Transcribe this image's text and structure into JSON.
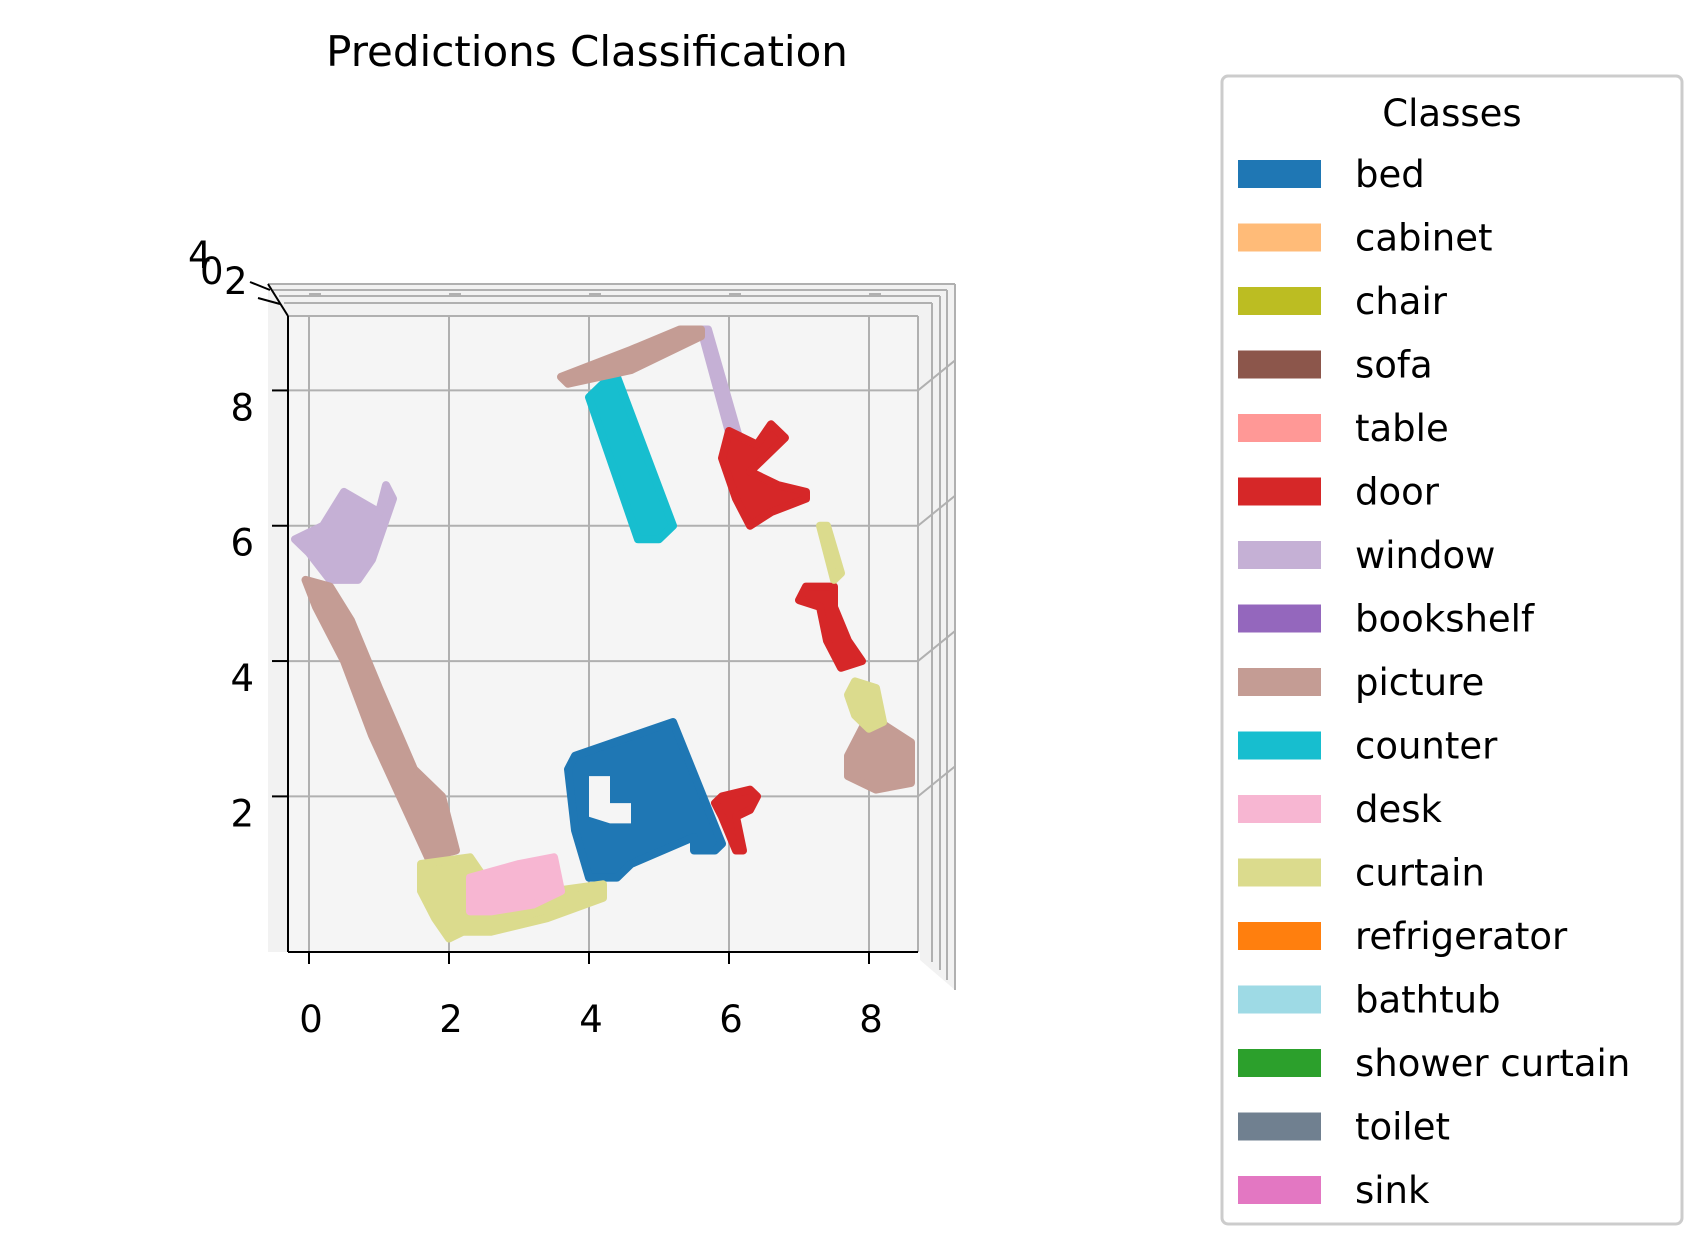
{
  "chart_data": {
    "type": "scatter",
    "title": "Predictions Classification",
    "xlabel": "",
    "ylabel": "",
    "xlim": [
      -0.3,
      8.7
    ],
    "ylim": [
      -0.3,
      9.1
    ],
    "x_ticks": [
      "0",
      "2",
      "4",
      "6",
      "8"
    ],
    "y_ticks": [
      "2",
      "4",
      "6",
      "8"
    ],
    "z_ticks": [
      "4",
      "0",
      "2"
    ],
    "grid": true,
    "legend": {
      "title": "Classes",
      "position": "right",
      "entries": [
        {
          "label": "bed",
          "color": "#1f77b4"
        },
        {
          "label": "cabinet",
          "color": "#ffbb78"
        },
        {
          "label": "chair",
          "color": "#bcbd22"
        },
        {
          "label": "sofa",
          "color": "#8c564b"
        },
        {
          "label": "table",
          "color": "#ff9896"
        },
        {
          "label": "door",
          "color": "#d62728"
        },
        {
          "label": "window",
          "color": "#c5b0d5"
        },
        {
          "label": "bookshelf",
          "color": "#9467bd"
        },
        {
          "label": "picture",
          "color": "#c49c94"
        },
        {
          "label": "counter",
          "color": "#17becf"
        },
        {
          "label": "desk",
          "color": "#f7b6d2"
        },
        {
          "label": "curtain",
          "color": "#dbdb8d"
        },
        {
          "label": "refrigerator",
          "color": "#ff7f0e"
        },
        {
          "label": "bathtub",
          "color": "#9edae5"
        },
        {
          "label": "shower curtain",
          "color": "#2ca02c"
        },
        {
          "label": "toilet",
          "color": "#708090"
        },
        {
          "label": "sink",
          "color": "#e377c2"
        }
      ]
    },
    "series": [
      {
        "name": "bed",
        "color": "#1f77b4",
        "regions": [
          [
            [
              3.8,
              2.6
            ],
            [
              5.2,
              3.1
            ],
            [
              5.9,
              1.3
            ],
            [
              5.8,
              1.2
            ],
            [
              5.5,
              1.2
            ],
            [
              5.5,
              1.4
            ],
            [
              4.6,
              1.0
            ],
            [
              4.4,
              0.8
            ],
            [
              4.0,
              0.8
            ],
            [
              3.8,
              1.5
            ],
            [
              3.7,
              2.4
            ]
          ]
        ]
      },
      {
        "name": "counter",
        "color": "#17becf",
        "regions": [
          [
            [
              4.2,
              8.1
            ],
            [
              4.4,
              8.2
            ],
            [
              5.2,
              6.0
            ],
            [
              5.0,
              5.8
            ],
            [
              4.7,
              5.8
            ],
            [
              4.0,
              7.9
            ]
          ]
        ]
      },
      {
        "name": "window",
        "color": "#c5b0d5",
        "regions": [
          [
            [
              0.2,
              6.0
            ],
            [
              0.5,
              6.5
            ],
            [
              1.0,
              6.2
            ],
            [
              1.1,
              6.6
            ],
            [
              1.2,
              6.4
            ],
            [
              0.9,
              5.5
            ],
            [
              0.7,
              5.2
            ],
            [
              0.3,
              5.2
            ],
            [
              0.0,
              5.6
            ],
            [
              -0.2,
              5.8
            ]
          ],
          [
            [
              5.6,
              8.9
            ],
            [
              5.7,
              8.9
            ],
            [
              6.2,
              7.1
            ],
            [
              6.1,
              7.0
            ]
          ]
        ]
      },
      {
        "name": "picture",
        "color": "#c49c94",
        "regions": [
          [
            [
              -0.05,
              5.2
            ],
            [
              0.3,
              5.1
            ],
            [
              0.6,
              4.6
            ],
            [
              1.0,
              3.6
            ],
            [
              1.5,
              2.4
            ],
            [
              1.9,
              2.0
            ],
            [
              2.1,
              1.2
            ],
            [
              1.7,
              1.1
            ],
            [
              1.3,
              2.0
            ],
            [
              0.9,
              2.9
            ],
            [
              0.5,
              4.0
            ],
            [
              0.1,
              4.8
            ]
          ],
          [
            [
              3.6,
              8.2
            ],
            [
              4.6,
              8.6
            ],
            [
              5.3,
              8.9
            ],
            [
              5.6,
              8.9
            ],
            [
              5.6,
              8.8
            ],
            [
              4.6,
              8.3
            ],
            [
              3.7,
              8.1
            ]
          ],
          [
            [
              8.0,
              3.2
            ],
            [
              8.6,
              2.8
            ],
            [
              8.6,
              2.2
            ],
            [
              8.1,
              2.1
            ],
            [
              7.7,
              2.3
            ],
            [
              7.7,
              2.6
            ]
          ]
        ]
      },
      {
        "name": "door",
        "color": "#d62728",
        "regions": [
          [
            [
              6.0,
              7.4
            ],
            [
              6.4,
              7.2
            ],
            [
              6.6,
              7.5
            ],
            [
              6.8,
              7.3
            ],
            [
              6.5,
              7.0
            ],
            [
              6.3,
              6.8
            ],
            [
              6.7,
              6.6
            ],
            [
              7.1,
              6.5
            ],
            [
              7.1,
              6.4
            ],
            [
              6.6,
              6.2
            ],
            [
              6.3,
              6.0
            ],
            [
              6.1,
              6.4
            ],
            [
              5.9,
              7.0
            ]
          ],
          [
            [
              7.1,
              5.1
            ],
            [
              7.5,
              5.1
            ],
            [
              7.5,
              4.8
            ],
            [
              7.7,
              4.3
            ],
            [
              7.9,
              4.0
            ],
            [
              7.6,
              3.9
            ],
            [
              7.4,
              4.3
            ],
            [
              7.3,
              4.8
            ],
            [
              7.0,
              4.9
            ]
          ],
          [
            [
              5.9,
              2.0
            ],
            [
              6.3,
              2.1
            ],
            [
              6.4,
              2.0
            ],
            [
              6.3,
              1.8
            ],
            [
              6.1,
              1.7
            ],
            [
              6.2,
              1.2
            ],
            [
              6.1,
              1.2
            ],
            [
              5.9,
              1.7
            ],
            [
              5.8,
              1.9
            ]
          ]
        ]
      },
      {
        "name": "curtain",
        "color": "#dbdb8d",
        "regions": [
          [
            [
              7.3,
              6.0
            ],
            [
              7.4,
              6.0
            ],
            [
              7.6,
              5.3
            ],
            [
              7.5,
              5.2
            ]
          ],
          [
            [
              7.8,
              3.7
            ],
            [
              8.1,
              3.6
            ],
            [
              8.2,
              3.1
            ],
            [
              8.0,
              3.0
            ],
            [
              7.8,
              3.2
            ],
            [
              7.7,
              3.5
            ]
          ],
          [
            [
              1.6,
              1.0
            ],
            [
              2.3,
              1.1
            ],
            [
              2.5,
              0.8
            ],
            [
              3.5,
              0.6
            ],
            [
              4.2,
              0.7
            ],
            [
              4.2,
              0.5
            ],
            [
              3.4,
              0.2
            ],
            [
              2.6,
              0.0
            ],
            [
              2.2,
              0.0
            ],
            [
              2.0,
              -0.1
            ],
            [
              1.8,
              0.2
            ],
            [
              1.6,
              0.6
            ]
          ]
        ]
      },
      {
        "name": "desk",
        "color": "#f7b6d2",
        "regions": [
          [
            [
              2.3,
              0.8
            ],
            [
              3.0,
              1.0
            ],
            [
              3.5,
              1.1
            ],
            [
              3.6,
              0.6
            ],
            [
              3.2,
              0.4
            ],
            [
              2.6,
              0.3
            ],
            [
              2.3,
              0.3
            ]
          ]
        ]
      }
    ]
  }
}
